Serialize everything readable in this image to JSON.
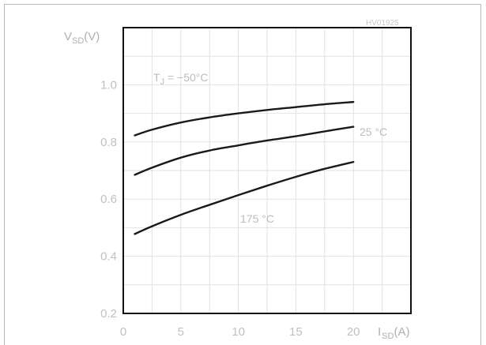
{
  "figure_code": "HV01925",
  "chart_data": {
    "type": "line",
    "title": "",
    "xlabel": {
      "main": "I",
      "sub": "SD",
      "unit": "(A)"
    },
    "ylabel": {
      "main": "V",
      "sub": "SD",
      "unit": "(V)"
    },
    "xlim": [
      0,
      25
    ],
    "ylim": [
      0.2,
      1.2
    ],
    "x_ticks": [
      "0",
      "5",
      "10",
      "15",
      "20"
    ],
    "x_tick_values": [
      0,
      5,
      10,
      15,
      20
    ],
    "y_ticks": [
      "0.2",
      "0.4",
      "0.6",
      "0.8",
      "1.0"
    ],
    "y_tick_values": [
      0.2,
      0.4,
      0.6,
      0.8,
      1.0
    ],
    "grid": true,
    "x": [
      1,
      2.5,
      5,
      7.5,
      10,
      12.5,
      15,
      17.5,
      20
    ],
    "series": [
      {
        "values": [
          0.823,
          0.843,
          0.868,
          0.886,
          0.9,
          0.912,
          0.922,
          0.932,
          0.94
        ]
      },
      {
        "values": [
          0.685,
          0.71,
          0.745,
          0.77,
          0.788,
          0.805,
          0.82,
          0.837,
          0.853
        ]
      },
      {
        "values": [
          0.478,
          0.505,
          0.545,
          0.58,
          0.614,
          0.647,
          0.678,
          0.706,
          0.73
        ]
      }
    ],
    "annotations": [
      {
        "label_main": "T",
        "label_sub": "J",
        "label_rest": " = −50°C"
      },
      {
        "text": "25 °C"
      },
      {
        "text": "175 °C"
      }
    ]
  }
}
